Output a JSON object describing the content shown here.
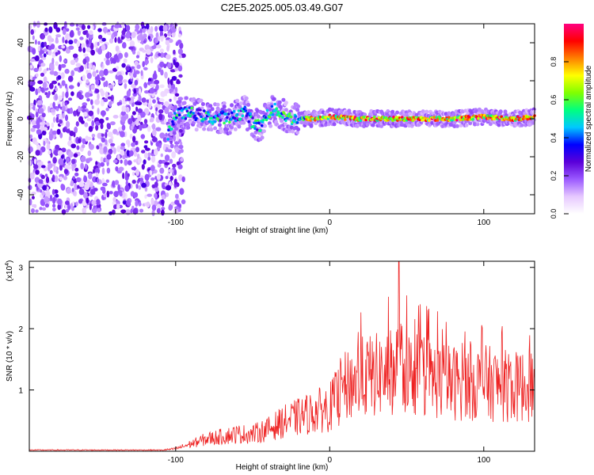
{
  "title": "C2E5.2025.005.03.49.G07",
  "chart_data": [
    {
      "type": "heatmap",
      "xlabel": "Height of straight line (km)",
      "ylabel": "Frequency (Hz)",
      "xlim": [
        -195,
        133
      ],
      "ylim": [
        -50,
        50
      ],
      "xticks": [
        -100,
        0,
        100
      ],
      "yticks": [
        -40,
        -20,
        0,
        20,
        40
      ],
      "colorbar": {
        "label": "Normalized spectral amplitude",
        "range": [
          0,
          1
        ],
        "ticks": [
          0.0,
          0.2,
          0.4,
          0.6,
          0.8
        ],
        "colors": [
          "#ffffff",
          "#e6c8ff",
          "#9b59ff",
          "#5a00d9",
          "#0000ff",
          "#00c8ff",
          "#00ff80",
          "#80ff00",
          "#ffff00",
          "#ff8000",
          "#ff0000",
          "#ff0080"
        ]
      },
      "signal_trace": {
        "x": [
          -105,
          -100,
          -95,
          -90,
          -85,
          -80,
          -75,
          -70,
          -65,
          -60,
          -55,
          -50,
          -45,
          -40,
          -35,
          -30,
          -25,
          -20,
          -10,
          0,
          20,
          40,
          60,
          80,
          100,
          120,
          133
        ],
        "freq": [
          -8,
          2,
          3,
          3,
          2,
          1,
          0,
          1,
          0,
          2,
          4,
          -2,
          -4,
          3,
          5,
          2,
          0,
          0,
          0,
          1,
          0,
          0,
          0,
          0,
          1,
          0,
          1
        ]
      },
      "noise_region_x": [
        -195,
        -100
      ]
    },
    {
      "type": "line",
      "xlabel": "Height of straight line (km)",
      "ylabel": "SNR (10 * v/v)",
      "y_multiplier_label": "(x10",
      "y_multiplier_exp": "4",
      "y_multiplier_close": ")",
      "xlim": [
        -195,
        133
      ],
      "ylim": [
        0,
        3.1
      ],
      "xticks": [
        -100,
        0,
        100
      ],
      "yticks": [
        1,
        2,
        3
      ],
      "color": "#ee2222",
      "envelope": {
        "x": [
          -195,
          -110,
          -100,
          -90,
          -80,
          -70,
          -60,
          -50,
          -40,
          -30,
          -20,
          -10,
          0,
          10,
          20,
          30,
          40,
          45,
          50,
          60,
          70,
          80,
          90,
          100,
          110,
          120,
          133
        ],
        "y": [
          0.02,
          0.02,
          0.05,
          0.15,
          0.25,
          0.3,
          0.35,
          0.35,
          0.45,
          0.6,
          0.7,
          0.8,
          0.9,
          1.3,
          1.5,
          1.55,
          1.6,
          1.75,
          1.6,
          1.55,
          1.45,
          1.4,
          1.4,
          1.4,
          1.35,
          1.3,
          1.35
        ]
      },
      "peak": {
        "x": 45,
        "y": 3.1
      }
    }
  ]
}
